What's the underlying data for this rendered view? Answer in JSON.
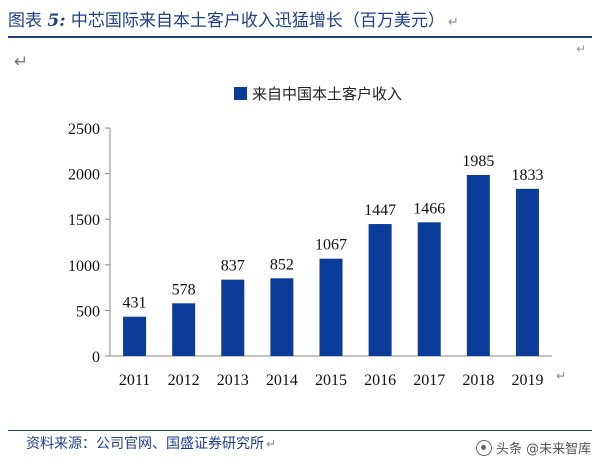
{
  "caption": {
    "label": "图表",
    "number": "5:",
    "title": "中芯国际来自本土客户收入迅猛增长（百万美元）",
    "mark": "↵"
  },
  "marks": {
    "paragraph": "↵",
    "cell": "↵",
    "axis": "↵"
  },
  "footer": {
    "source": "资料来源：公司官网、国盛证券研究所",
    "mark": "↵",
    "watermark": "头条 @未来智库"
  },
  "chart_data": {
    "type": "bar",
    "title": "",
    "xlabel": "",
    "ylabel": "",
    "categories": [
      "2011",
      "2012",
      "2013",
      "2014",
      "2015",
      "2016",
      "2017",
      "2018",
      "2019"
    ],
    "series": [
      {
        "name": "来自中国本土客户收入",
        "values": [
          431,
          578,
          837,
          852,
          1067,
          1447,
          1466,
          1985,
          1833
        ],
        "color": "#0b3c99"
      }
    ],
    "ylim": [
      0,
      2500
    ],
    "yticks": [
      0,
      500,
      1000,
      1500,
      2000,
      2500
    ],
    "data_labels": true,
    "legend_position": "top-center",
    "grid": false
  }
}
